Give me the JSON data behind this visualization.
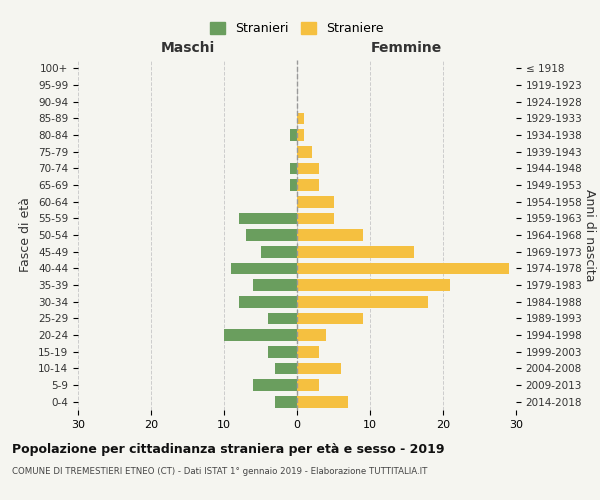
{
  "age_groups": [
    "0-4",
    "5-9",
    "10-14",
    "15-19",
    "20-24",
    "25-29",
    "30-34",
    "35-39",
    "40-44",
    "45-49",
    "50-54",
    "55-59",
    "60-64",
    "65-69",
    "70-74",
    "75-79",
    "80-84",
    "85-89",
    "90-94",
    "95-99",
    "100+"
  ],
  "birth_years": [
    "2014-2018",
    "2009-2013",
    "2004-2008",
    "1999-2003",
    "1994-1998",
    "1989-1993",
    "1984-1988",
    "1979-1983",
    "1974-1978",
    "1969-1973",
    "1964-1968",
    "1959-1963",
    "1954-1958",
    "1949-1953",
    "1944-1948",
    "1939-1943",
    "1934-1938",
    "1929-1933",
    "1924-1928",
    "1919-1923",
    "≤ 1918"
  ],
  "maschi": [
    3,
    6,
    3,
    4,
    10,
    4,
    8,
    6,
    9,
    5,
    7,
    8,
    0,
    1,
    1,
    0,
    1,
    0,
    0,
    0,
    0
  ],
  "femmine": [
    7,
    3,
    6,
    3,
    4,
    9,
    18,
    21,
    29,
    16,
    9,
    5,
    5,
    3,
    3,
    2,
    1,
    1,
    0,
    0,
    0
  ],
  "maschi_color": "#6a9e5e",
  "femmine_color": "#f5c040",
  "background_color": "#f5f5f0",
  "grid_color": "#cccccc",
  "title": "Popolazione per cittadinanza straniera per età e sesso - 2019",
  "subtitle": "COMUNE DI TREMESTIERI ETNEO (CT) - Dati ISTAT 1° gennaio 2019 - Elaborazione TUTTITALIA.IT",
  "xlabel_left": "Maschi",
  "xlabel_right": "Femmine",
  "ylabel_left": "Fasce di età",
  "ylabel_right": "Anni di nascita",
  "legend_stranieri": "Stranieri",
  "legend_straniere": "Straniere",
  "xlim": 30
}
